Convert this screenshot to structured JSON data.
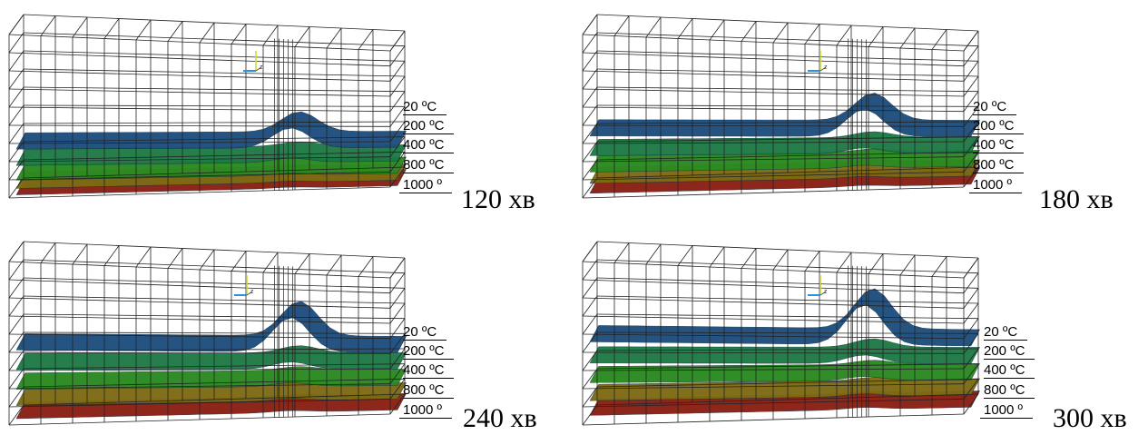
{
  "panels": [
    {
      "time_label": "120 хв",
      "isotherm_labels": [
        "20 ºC",
        "200 ºC",
        "400 ºC",
        "800 ºC",
        "1000 º"
      ],
      "surface_levels": [
        0.66,
        0.76,
        0.85,
        0.9,
        0.94
      ],
      "peak_height": 0.55
    },
    {
      "time_label": "180 хв",
      "isotherm_labels": [
        "20 ºC",
        "200 ºC",
        "400 ºC",
        "800 ºC",
        "1000 º"
      ],
      "surface_levels": [
        0.58,
        0.7,
        0.8,
        0.87,
        0.93
      ],
      "peak_height": 0.75
    },
    {
      "time_label": "240 хв",
      "isotherm_labels": [
        "20 ºC",
        "200 ºC",
        "400 ºC",
        "800 ºC",
        "1000 º"
      ],
      "surface_levels": [
        0.5,
        0.62,
        0.74,
        0.84,
        0.92
      ],
      "peak_height": 0.95
    },
    {
      "time_label": "300 хв",
      "isotherm_labels": [
        "20 ºC",
        "200 ºC",
        "400 ºC",
        "800 ºC",
        "1000 º"
      ],
      "surface_levels": [
        0.45,
        0.58,
        0.7,
        0.81,
        0.9
      ],
      "peak_height": 1.1
    }
  ],
  "surface_colors": [
    "#1f4f7e",
    "#1e7a46",
    "#2b8a21",
    "#7d6b14",
    "#8a1f14"
  ],
  "axis_triad": {
    "x_color": "#2b8fe0",
    "y_color": "#cfdc3a",
    "z_color": "#555555",
    "label": "z"
  }
}
